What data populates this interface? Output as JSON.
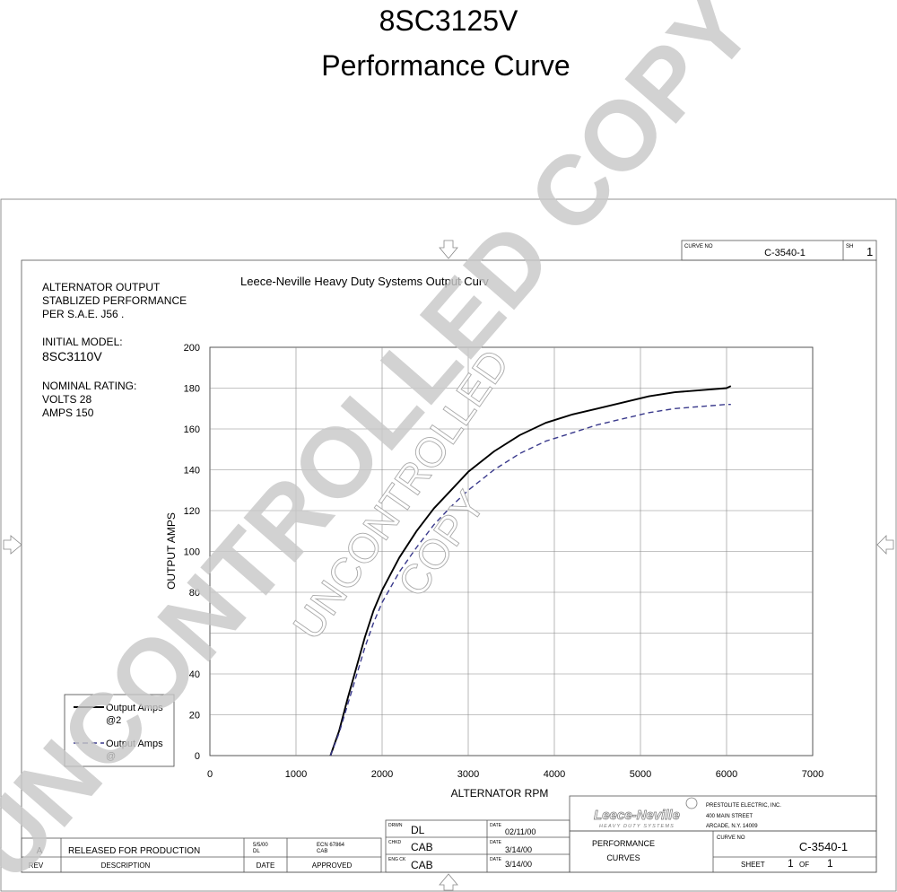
{
  "page": {
    "title_line1": "8SC3125V",
    "title_line2": "Performance Curve",
    "watermark_large": "UNCONTROLLED COPY",
    "watermark_small_1": "UNCONTROLLED",
    "watermark_small_2": "COPY"
  },
  "notes": {
    "line1": "ALTERNATOR OUTPUT",
    "line2": "STABLIZED PERFORMANCE",
    "line3": "PER S.A.E. J56 .",
    "initial_label": "INITIAL MODEL:",
    "initial_value": "8SC3110V",
    "rating_label": "NOMINAL RATING:",
    "volts": "VOLTS 28",
    "amps": "AMPS 150"
  },
  "legend": {
    "item1_line1": "Output Amps",
    "item1_line2": "@2",
    "item2_line1": "Output Amps",
    "item2_line2": "@"
  },
  "title_block": {
    "curve_no_label": "CURVE NO",
    "curve_no_top": "C-3540-1",
    "sh_label": "SH",
    "sh_value": "1",
    "drwn_label": "DRWN",
    "drwn_value": "DL",
    "date_label": "DATE",
    "drwn_date": "02/11/00",
    "chkd_label": "CHKD",
    "chkd_value": "CAB",
    "chkd_date": "3/14/00",
    "engck_label": "ENG CK",
    "engck_value": "CAB",
    "engck_date": "3/14/00",
    "rev_value": "A",
    "rev_desc": "RELEASED FOR PRODUCTION",
    "rev_date": "5/5/00",
    "rev_date_by": "DL",
    "ecn": "ECN 67864",
    "ecn_by": "CAB",
    "rev_label": "REV",
    "desc_label": "DESCRIPTION",
    "date_col_label": "DATE",
    "approved_label": "APPROVED",
    "logo_text": "Leece-Neville",
    "logo_sub": "HEAVY DUTY SYSTEMS",
    "company": "PRESTOLITE ELECTRIC, INC.",
    "street": "400 MAIN STREET",
    "city": "ARCADE, N.Y. 14009",
    "doc_title_1": "PERFORMANCE",
    "doc_title_2": "CURVES",
    "curve_no_label_2": "CURVE NO",
    "curve_no_bottom": "C-3540-1",
    "sheet_label": "SHEET",
    "sheet_value": "1",
    "of_label": "OF",
    "of_value": "1"
  },
  "chart_data": {
    "type": "line",
    "title": "Leece-Neville Heavy Duty Systems Output Curv",
    "xlabel": "ALTERNATOR RPM",
    "ylabel": "OUTPUT AMPS",
    "xlim": [
      0,
      7000
    ],
    "ylim": [
      0,
      200
    ],
    "x_ticks": [
      0,
      1000,
      2000,
      3000,
      4000,
      5000,
      6000,
      7000
    ],
    "y_ticks": [
      0,
      20,
      40,
      80,
      100,
      120,
      140,
      160,
      180,
      200
    ],
    "y_gridlines": [
      0,
      20,
      40,
      60,
      80,
      100,
      120,
      140,
      160,
      180,
      200
    ],
    "grid": true,
    "legend_position": "bottom-left",
    "series": [
      {
        "name": "Output Amps",
        "style": "solid",
        "color": "#000000",
        "x": [
          1400,
          1500,
          1600,
          1700,
          1800,
          1900,
          2000,
          2200,
          2400,
          2600,
          2800,
          3000,
          3300,
          3600,
          3900,
          4200,
          4500,
          4800,
          5100,
          5400,
          5700,
          6000,
          6050
        ],
        "y": [
          0,
          12,
          28,
          43,
          58,
          71,
          81,
          97,
          110,
          121,
          130,
          139,
          149,
          157,
          163,
          167,
          170,
          173,
          176,
          178,
          179,
          180,
          181
        ]
      },
      {
        "name": "Output Amps",
        "style": "dashed",
        "color": "#3a3a8c",
        "x": [
          1400,
          1500,
          1600,
          1700,
          1800,
          1900,
          2000,
          2200,
          2400,
          2600,
          2800,
          3000,
          3300,
          3600,
          3900,
          4200,
          4500,
          4800,
          5100,
          5400,
          5700,
          6000,
          6050
        ],
        "y": [
          0,
          11,
          25,
          39,
          53,
          65,
          75,
          90,
          102,
          113,
          122,
          130,
          140,
          148,
          154,
          158,
          162,
          165,
          168,
          170,
          171,
          172,
          172
        ]
      }
    ]
  }
}
